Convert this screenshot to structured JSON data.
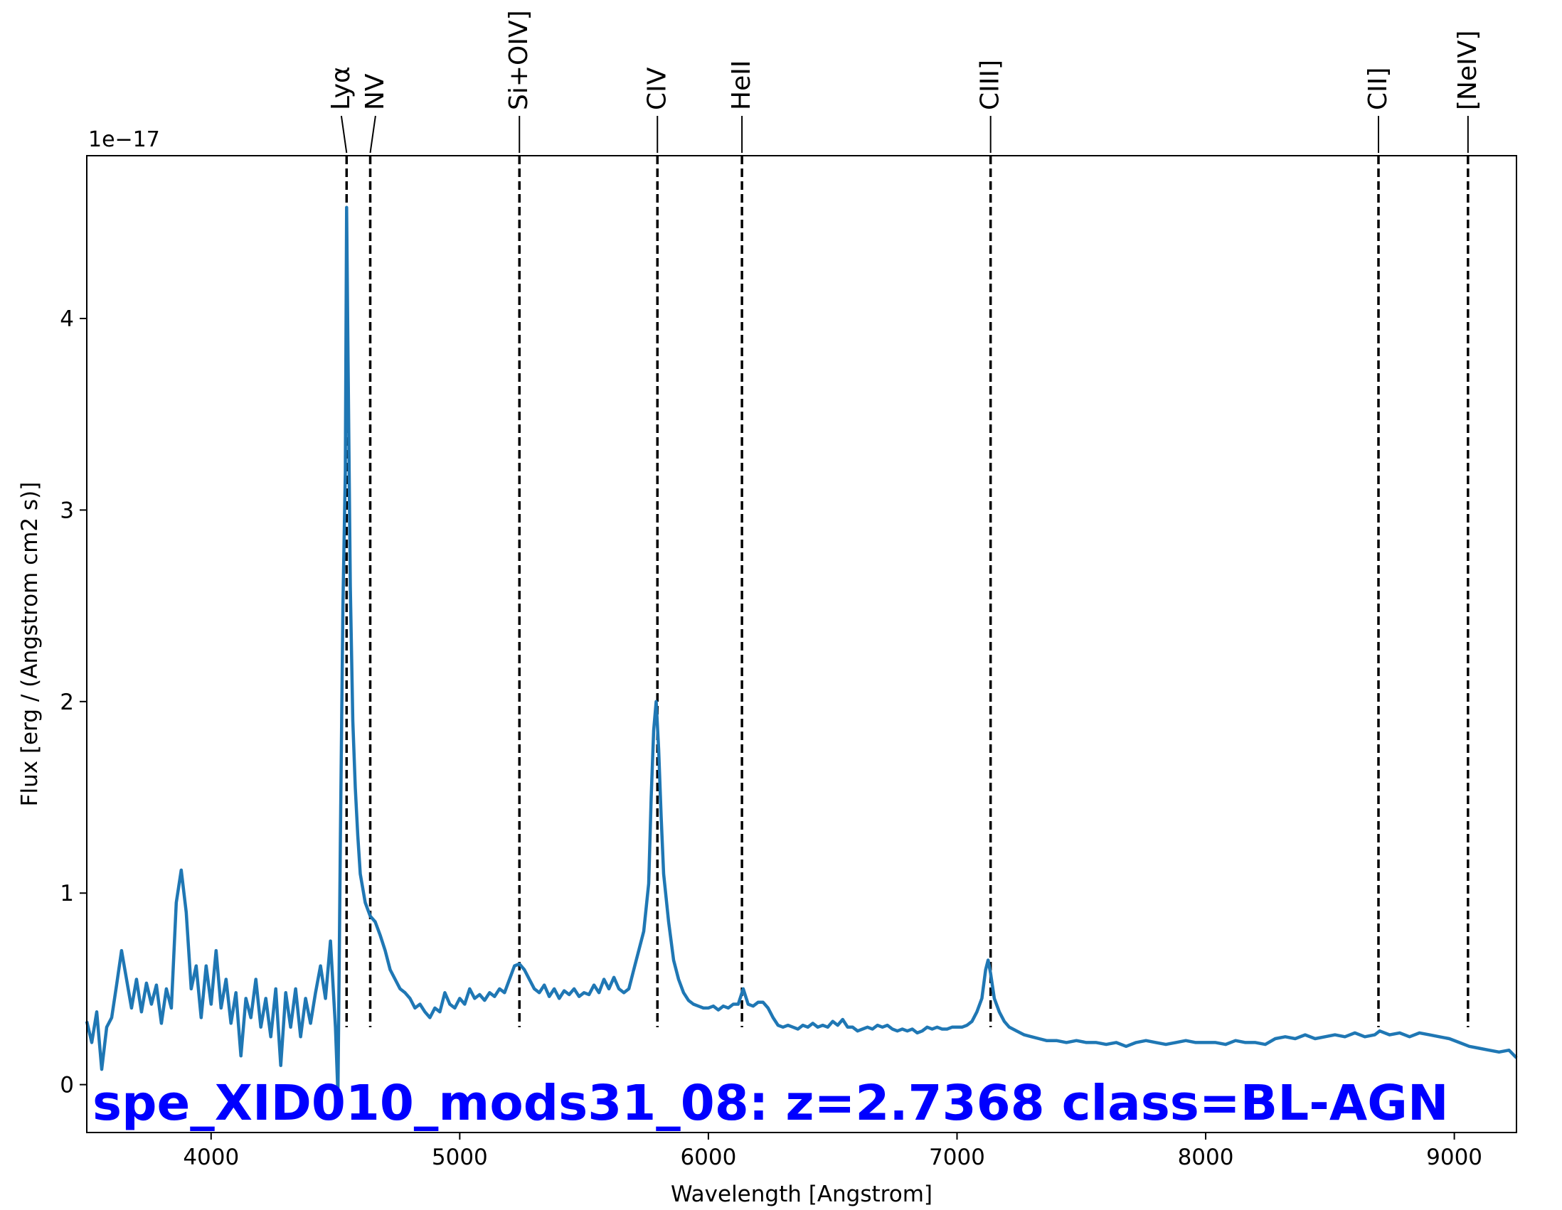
{
  "chart_data": {
    "type": "line",
    "title": "spe_XID010_mods31_08: z=2.7368 class=BL-AGN",
    "xlabel": "Wavelength [Angstrom]",
    "ylabel": "Flux [erg / (Angstrom cm2 s)]",
    "y_offset_label": "1e−17",
    "xlim": [
      3500,
      9250
    ],
    "ylim": [
      -0.25,
      4.85
    ],
    "y_scale_exponent": -17,
    "grid": false,
    "x_ticks": [
      4000,
      5000,
      6000,
      7000,
      8000,
      9000
    ],
    "y_ticks": [
      0,
      1,
      2,
      3,
      4
    ],
    "series": [
      {
        "color": "#1f77b4",
        "points": [
          [
            3500,
            0.33
          ],
          [
            3520,
            0.22
          ],
          [
            3540,
            0.38
          ],
          [
            3560,
            0.08
          ],
          [
            3580,
            0.3
          ],
          [
            3600,
            0.35
          ],
          [
            3620,
            0.52
          ],
          [
            3640,
            0.7
          ],
          [
            3660,
            0.55
          ],
          [
            3680,
            0.4
          ],
          [
            3700,
            0.55
          ],
          [
            3720,
            0.38
          ],
          [
            3740,
            0.53
          ],
          [
            3760,
            0.42
          ],
          [
            3780,
            0.52
          ],
          [
            3800,
            0.32
          ],
          [
            3820,
            0.5
          ],
          [
            3840,
            0.4
          ],
          [
            3860,
            0.95
          ],
          [
            3880,
            1.12
          ],
          [
            3900,
            0.9
          ],
          [
            3920,
            0.5
          ],
          [
            3940,
            0.62
          ],
          [
            3960,
            0.35
          ],
          [
            3980,
            0.62
          ],
          [
            4000,
            0.42
          ],
          [
            4020,
            0.7
          ],
          [
            4040,
            0.4
          ],
          [
            4060,
            0.55
          ],
          [
            4080,
            0.32
          ],
          [
            4100,
            0.48
          ],
          [
            4120,
            0.15
          ],
          [
            4140,
            0.45
          ],
          [
            4160,
            0.35
          ],
          [
            4180,
            0.55
          ],
          [
            4200,
            0.3
          ],
          [
            4220,
            0.45
          ],
          [
            4240,
            0.25
          ],
          [
            4260,
            0.5
          ],
          [
            4280,
            0.1
          ],
          [
            4300,
            0.48
          ],
          [
            4320,
            0.3
          ],
          [
            4340,
            0.5
          ],
          [
            4360,
            0.25
          ],
          [
            4380,
            0.45
          ],
          [
            4400,
            0.32
          ],
          [
            4420,
            0.48
          ],
          [
            4440,
            0.62
          ],
          [
            4460,
            0.45
          ],
          [
            4480,
            0.75
          ],
          [
            4500,
            0.3
          ],
          [
            4510,
            -0.05
          ],
          [
            4520,
            1.3
          ],
          [
            4530,
            2.5
          ],
          [
            4540,
            3.2
          ],
          [
            4545,
            4.58
          ],
          [
            4550,
            3.9
          ],
          [
            4560,
            2.6
          ],
          [
            4570,
            1.9
          ],
          [
            4580,
            1.55
          ],
          [
            4590,
            1.3
          ],
          [
            4600,
            1.1
          ],
          [
            4620,
            0.95
          ],
          [
            4640,
            0.88
          ],
          [
            4660,
            0.85
          ],
          [
            4680,
            0.78
          ],
          [
            4700,
            0.7
          ],
          [
            4720,
            0.6
          ],
          [
            4740,
            0.55
          ],
          [
            4760,
            0.5
          ],
          [
            4780,
            0.48
          ],
          [
            4800,
            0.45
          ],
          [
            4820,
            0.4
          ],
          [
            4840,
            0.42
          ],
          [
            4860,
            0.38
          ],
          [
            4880,
            0.35
          ],
          [
            4900,
            0.4
          ],
          [
            4920,
            0.38
          ],
          [
            4940,
            0.48
          ],
          [
            4960,
            0.42
          ],
          [
            4980,
            0.4
          ],
          [
            5000,
            0.45
          ],
          [
            5020,
            0.42
          ],
          [
            5040,
            0.5
          ],
          [
            5060,
            0.45
          ],
          [
            5080,
            0.47
          ],
          [
            5100,
            0.44
          ],
          [
            5120,
            0.48
          ],
          [
            5140,
            0.46
          ],
          [
            5160,
            0.5
          ],
          [
            5180,
            0.48
          ],
          [
            5200,
            0.55
          ],
          [
            5220,
            0.62
          ],
          [
            5240,
            0.63
          ],
          [
            5260,
            0.6
          ],
          [
            5280,
            0.55
          ],
          [
            5300,
            0.5
          ],
          [
            5320,
            0.48
          ],
          [
            5340,
            0.52
          ],
          [
            5360,
            0.46
          ],
          [
            5380,
            0.5
          ],
          [
            5400,
            0.45
          ],
          [
            5420,
            0.49
          ],
          [
            5440,
            0.47
          ],
          [
            5460,
            0.5
          ],
          [
            5480,
            0.46
          ],
          [
            5500,
            0.48
          ],
          [
            5520,
            0.47
          ],
          [
            5540,
            0.52
          ],
          [
            5560,
            0.48
          ],
          [
            5580,
            0.55
          ],
          [
            5600,
            0.5
          ],
          [
            5620,
            0.56
          ],
          [
            5640,
            0.5
          ],
          [
            5660,
            0.48
          ],
          [
            5680,
            0.5
          ],
          [
            5700,
            0.6
          ],
          [
            5720,
            0.7
          ],
          [
            5740,
            0.8
          ],
          [
            5760,
            1.05
          ],
          [
            5770,
            1.5
          ],
          [
            5780,
            1.85
          ],
          [
            5790,
            2.0
          ],
          [
            5800,
            1.75
          ],
          [
            5810,
            1.4
          ],
          [
            5820,
            1.1
          ],
          [
            5840,
            0.85
          ],
          [
            5860,
            0.65
          ],
          [
            5880,
            0.55
          ],
          [
            5900,
            0.48
          ],
          [
            5920,
            0.44
          ],
          [
            5940,
            0.42
          ],
          [
            5960,
            0.41
          ],
          [
            5980,
            0.4
          ],
          [
            6000,
            0.4
          ],
          [
            6020,
            0.41
          ],
          [
            6040,
            0.39
          ],
          [
            6060,
            0.41
          ],
          [
            6080,
            0.4
          ],
          [
            6100,
            0.42
          ],
          [
            6120,
            0.42
          ],
          [
            6140,
            0.5
          ],
          [
            6160,
            0.42
          ],
          [
            6180,
            0.41
          ],
          [
            6200,
            0.43
          ],
          [
            6220,
            0.43
          ],
          [
            6240,
            0.4
          ],
          [
            6260,
            0.35
          ],
          [
            6280,
            0.31
          ],
          [
            6300,
            0.3
          ],
          [
            6320,
            0.31
          ],
          [
            6340,
            0.3
          ],
          [
            6360,
            0.29
          ],
          [
            6380,
            0.31
          ],
          [
            6400,
            0.3
          ],
          [
            6420,
            0.32
          ],
          [
            6440,
            0.3
          ],
          [
            6460,
            0.31
          ],
          [
            6480,
            0.3
          ],
          [
            6500,
            0.33
          ],
          [
            6520,
            0.31
          ],
          [
            6540,
            0.34
          ],
          [
            6560,
            0.3
          ],
          [
            6580,
            0.3
          ],
          [
            6600,
            0.28
          ],
          [
            6620,
            0.29
          ],
          [
            6640,
            0.3
          ],
          [
            6660,
            0.29
          ],
          [
            6680,
            0.31
          ],
          [
            6700,
            0.3
          ],
          [
            6720,
            0.31
          ],
          [
            6740,
            0.29
          ],
          [
            6760,
            0.28
          ],
          [
            6780,
            0.29
          ],
          [
            6800,
            0.28
          ],
          [
            6820,
            0.29
          ],
          [
            6840,
            0.27
          ],
          [
            6860,
            0.28
          ],
          [
            6880,
            0.3
          ],
          [
            6900,
            0.29
          ],
          [
            6920,
            0.3
          ],
          [
            6940,
            0.29
          ],
          [
            6960,
            0.29
          ],
          [
            6980,
            0.3
          ],
          [
            7000,
            0.3
          ],
          [
            7020,
            0.3
          ],
          [
            7040,
            0.31
          ],
          [
            7060,
            0.33
          ],
          [
            7080,
            0.38
          ],
          [
            7100,
            0.45
          ],
          [
            7115,
            0.6
          ],
          [
            7125,
            0.65
          ],
          [
            7135,
            0.58
          ],
          [
            7150,
            0.45
          ],
          [
            7170,
            0.38
          ],
          [
            7190,
            0.33
          ],
          [
            7210,
            0.3
          ],
          [
            7240,
            0.28
          ],
          [
            7270,
            0.26
          ],
          [
            7300,
            0.25
          ],
          [
            7330,
            0.24
          ],
          [
            7360,
            0.23
          ],
          [
            7400,
            0.23
          ],
          [
            7440,
            0.22
          ],
          [
            7480,
            0.23
          ],
          [
            7520,
            0.22
          ],
          [
            7560,
            0.22
          ],
          [
            7600,
            0.21
          ],
          [
            7640,
            0.22
          ],
          [
            7680,
            0.2
          ],
          [
            7720,
            0.22
          ],
          [
            7760,
            0.23
          ],
          [
            7800,
            0.22
          ],
          [
            7840,
            0.21
          ],
          [
            7880,
            0.22
          ],
          [
            7920,
            0.23
          ],
          [
            7960,
            0.22
          ],
          [
            8000,
            0.22
          ],
          [
            8040,
            0.22
          ],
          [
            8080,
            0.21
          ],
          [
            8120,
            0.23
          ],
          [
            8160,
            0.22
          ],
          [
            8200,
            0.22
          ],
          [
            8240,
            0.21
          ],
          [
            8280,
            0.24
          ],
          [
            8320,
            0.25
          ],
          [
            8360,
            0.24
          ],
          [
            8400,
            0.26
          ],
          [
            8440,
            0.24
          ],
          [
            8480,
            0.25
          ],
          [
            8520,
            0.26
          ],
          [
            8560,
            0.25
          ],
          [
            8600,
            0.27
          ],
          [
            8640,
            0.25
          ],
          [
            8680,
            0.26
          ],
          [
            8700,
            0.28
          ],
          [
            8740,
            0.26
          ],
          [
            8780,
            0.27
          ],
          [
            8820,
            0.25
          ],
          [
            8860,
            0.27
          ],
          [
            8900,
            0.26
          ],
          [
            8940,
            0.25
          ],
          [
            8980,
            0.24
          ],
          [
            9020,
            0.22
          ],
          [
            9060,
            0.2
          ],
          [
            9100,
            0.19
          ],
          [
            9140,
            0.18
          ],
          [
            9180,
            0.17
          ],
          [
            9220,
            0.18
          ],
          [
            9250,
            0.14
          ]
        ]
      }
    ],
    "emission_lines": [
      {
        "label": "Lyα",
        "x": 4545
      },
      {
        "label": "NV",
        "x": 4640
      },
      {
        "label": "Si+OIV]",
        "x": 5240
      },
      {
        "label": "CIV",
        "x": 5795
      },
      {
        "label": "HeII",
        "x": 6135
      },
      {
        "label": "CIII]",
        "x": 7135
      },
      {
        "label": "CII]",
        "x": 8695
      },
      {
        "label": "[NeIV]",
        "x": 9055
      }
    ],
    "title_color": "#0000ff",
    "line_marker_color": "#000000"
  }
}
